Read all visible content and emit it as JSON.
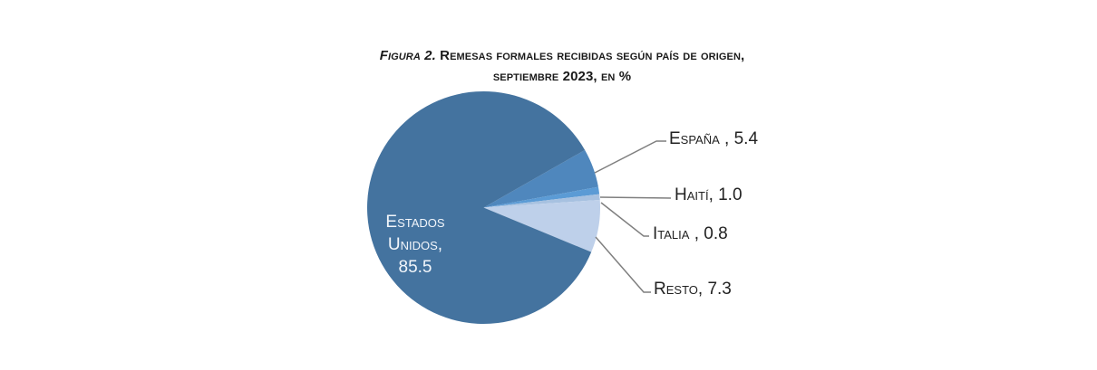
{
  "chart_data": {
    "type": "pie",
    "title": "FIGURA 2. REMESAS FORMALES RECIBIDAS SEGÚN PAÍS DE ORIGEN, SEPTIEMBRE 2023, EN %",
    "title_parts": {
      "prefix": "Figura 2.",
      "line1": "Remesas formales recibidas según país de origen,",
      "line2": "septiembre 2023, en %"
    },
    "unit": "%",
    "categories": [
      "Estados Unidos",
      "España",
      "Haití",
      "Italia",
      "Resto"
    ],
    "values": [
      85.5,
      5.4,
      1.0,
      0.8,
      7.3
    ],
    "colors": [
      "#44739f",
      "#4f87bd",
      "#5b9bd5",
      "#a7c1e0",
      "#bed0ea"
    ],
    "labels": [
      {
        "name": "Estados",
        "name2": "Unidos,",
        "value": "85.5"
      },
      {
        "name": "España",
        "value": " , 5.4"
      },
      {
        "name": "Haití",
        "value": ", 1.0"
      },
      {
        "name": "Italia",
        "value": " , 0.8"
      },
      {
        "name": "Resto",
        "value": ", 7.3"
      }
    ],
    "legend": "none (data labels with leader lines)"
  }
}
